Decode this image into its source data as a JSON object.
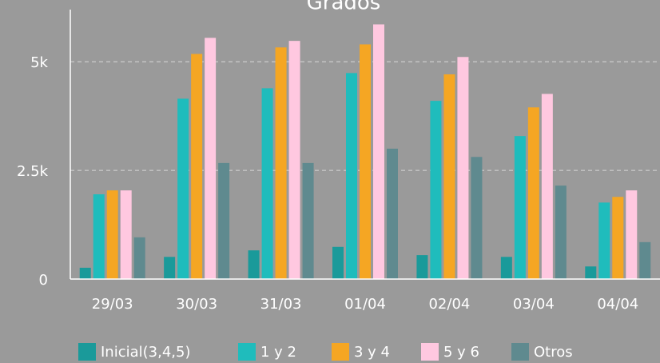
{
  "chart_data": {
    "type": "bar",
    "title": "Grados",
    "categories": [
      "29/03",
      "30/03",
      "31/03",
      "01/04",
      "02/04",
      "03/04",
      "04/04"
    ],
    "series": [
      {
        "name": "Inicial(3,4,5)",
        "color": "#1a9a9a",
        "values": [
          260,
          510,
          660,
          740,
          550,
          510,
          290
        ]
      },
      {
        "name": "1 y 2",
        "color": "#1fbcbc",
        "values": [
          1950,
          4150,
          4390,
          4740,
          4100,
          3290,
          1760
        ]
      },
      {
        "name": "3 y 4",
        "color": "#f5a623",
        "values": [
          2040,
          5180,
          5330,
          5400,
          4710,
          3950,
          1890
        ]
      },
      {
        "name": "5 y 6",
        "color": "#ffc8e0",
        "values": [
          2040,
          5550,
          5480,
          5860,
          5110,
          4260,
          2040
        ]
      },
      {
        "name": "Otros",
        "color": "#5f8a8f",
        "values": [
          960,
          2670,
          2670,
          3000,
          2810,
          2150,
          850
        ]
      }
    ],
    "ylim": [
      0,
      6200
    ],
    "yticks": [
      0,
      {
        "value": 2500,
        "label": "2.5k"
      },
      {
        "value": 5000,
        "label": "5k"
      }
    ],
    "grid": true
  }
}
